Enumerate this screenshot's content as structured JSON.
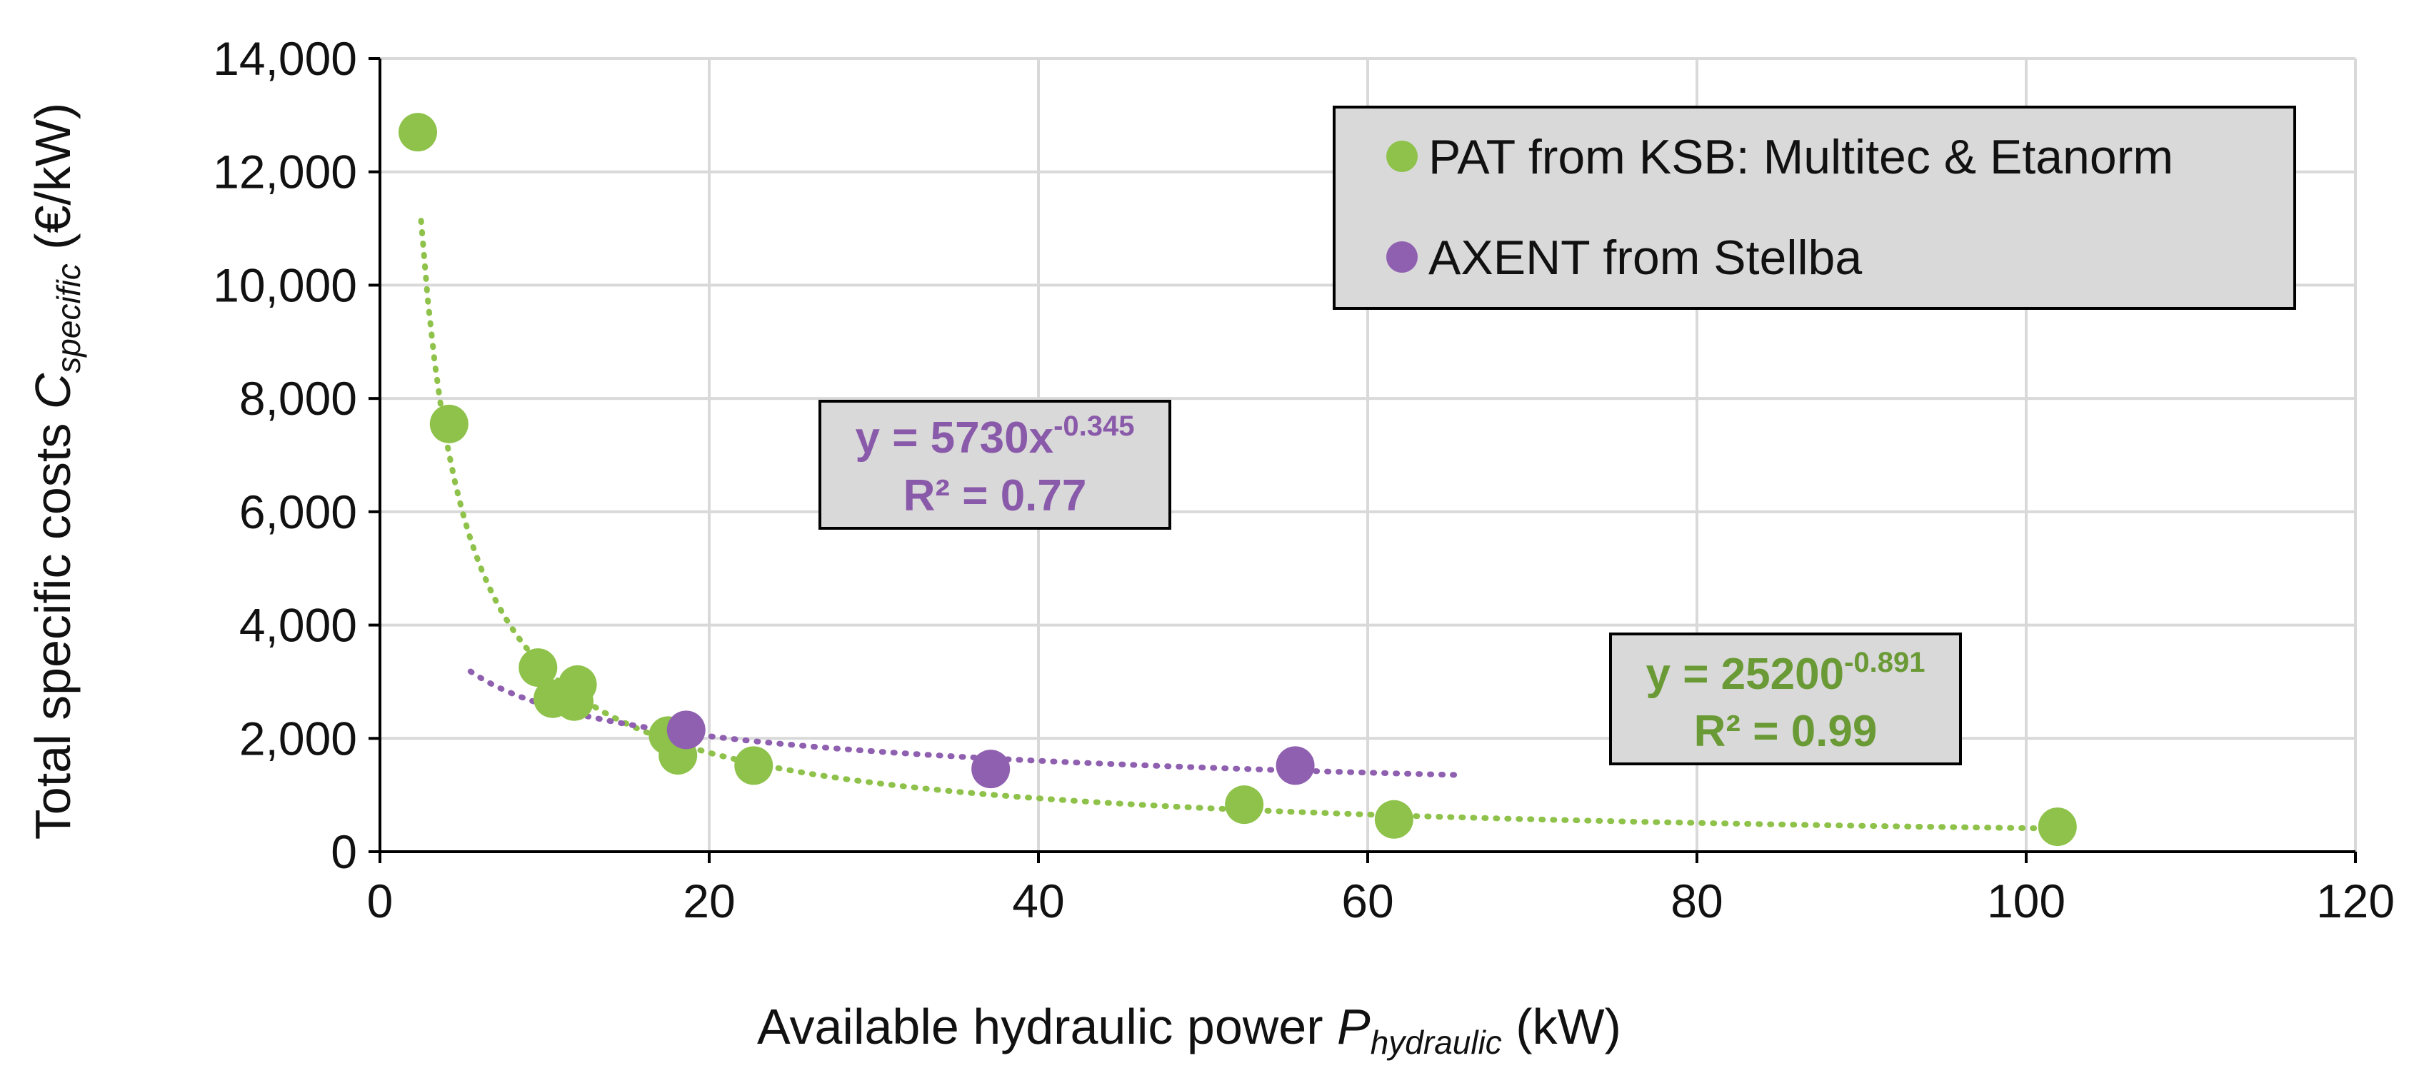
{
  "chart_data": {
    "type": "scatter",
    "xlabel": {
      "main": "Available hydraulic power ",
      "var": "P",
      "sub": "hydraulic",
      "unit": " (kW)"
    },
    "ylabel": {
      "main": "Total specific costs ",
      "var": "C",
      "sub": "specific",
      "unit": " (€/kW)"
    },
    "xlim": [
      0,
      120
    ],
    "ylim": [
      0,
      14000
    ],
    "x_ticks": [
      0,
      20,
      40,
      60,
      80,
      100,
      120
    ],
    "y_ticks": [
      0,
      2000,
      4000,
      6000,
      8000,
      10000,
      12000,
      14000
    ],
    "x_tick_labels": [
      "0",
      "20",
      "40",
      "60",
      "80",
      "100",
      "120"
    ],
    "y_tick_labels": [
      "0",
      "2,000",
      "4,000",
      "6,000",
      "8,000",
      "10,000",
      "12,000",
      "14,000"
    ],
    "grid": true,
    "legend_position": "top-right",
    "series": [
      {
        "name": "PAT from KSB: Multitec & Etanorm",
        "color": "#8ec24a",
        "points": [
          {
            "x": 2.3,
            "y": 12700
          },
          {
            "x": 4.2,
            "y": 7550
          },
          {
            "x": 9.6,
            "y": 3250
          },
          {
            "x": 10.5,
            "y": 2700
          },
          {
            "x": 11.8,
            "y": 2650
          },
          {
            "x": 12.0,
            "y": 2950
          },
          {
            "x": 17.5,
            "y": 2050
          },
          {
            "x": 18.1,
            "y": 1700
          },
          {
            "x": 22.7,
            "y": 1520
          },
          {
            "x": 52.5,
            "y": 830
          },
          {
            "x": 61.6,
            "y": 570
          },
          {
            "x": 101.9,
            "y": 440
          }
        ],
        "trendline": {
          "coef": 25200,
          "exp": -0.891,
          "x_range": [
            2.5,
            102
          ],
          "label_eq": "y = 25200",
          "label_exp": "-0.891",
          "label_r2": "R² = 0.99",
          "label_color": "#6a9a35"
        }
      },
      {
        "name": "AXENT from Stellba",
        "color": "#9060b0",
        "points": [
          {
            "x": 18.6,
            "y": 2150
          },
          {
            "x": 37.1,
            "y": 1460
          },
          {
            "x": 55.6,
            "y": 1520
          }
        ],
        "trendline": {
          "coef": 5730,
          "exp": -0.345,
          "x_range": [
            5.5,
            65.5
          ],
          "label_eq": "y = 5730x",
          "label_exp": "-0.345",
          "label_r2": "R² = 0.77",
          "label_color": "#8a5aaa"
        }
      }
    ]
  }
}
